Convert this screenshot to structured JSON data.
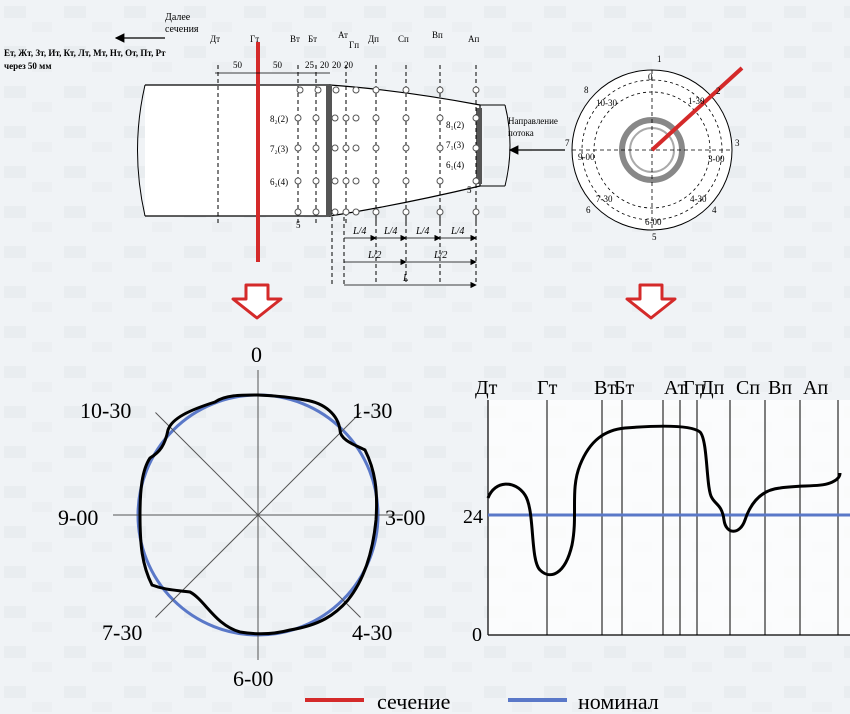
{
  "header": {
    "next_sections": "Далее\nсечения",
    "sections_list": "Ет, Жт, Зт, Ит, Кт, Лт, Мт, Нт, От, Пт, Рт",
    "sections_step": "через 50 мм",
    "flow_direction": "Направление\nпотока"
  },
  "top_section_labels": [
    "Дт",
    "Гт",
    "Вт",
    "Бт",
    "Ат",
    "Гп",
    "Дп",
    "Сп",
    "Вп",
    "Ап"
  ],
  "spacing_labels": [
    "50",
    "50",
    "25",
    "20",
    "20",
    "20"
  ],
  "measurement_points_left": [
    "8₂(2)",
    "7₂(3)",
    "6₂(4)",
    "5"
  ],
  "measurement_points_right": [
    "8₁(2)",
    "7₁(3)",
    "6₁(4)",
    "5"
  ],
  "length_labels": [
    "L/4",
    "L/4",
    "L/4",
    "L/4",
    "L/2",
    "L/2",
    "L"
  ],
  "small_circle": {
    "numbers": [
      "1",
      "2",
      "3",
      "4",
      "5",
      "6",
      "7",
      "8"
    ],
    "clock_labels": [
      "0",
      "1-30",
      "3-00",
      "4-30",
      "6-00",
      "7-30",
      "9-00",
      "10-30"
    ]
  },
  "polar_plot": {
    "labels": [
      "0",
      "1-30",
      "3-00",
      "4-30",
      "6-00",
      "7-30",
      "9-00",
      "10-30"
    ]
  },
  "profile_plot": {
    "column_labels": [
      "Дт",
      "Гт",
      "Вт",
      "Бт",
      "Ат",
      "Гп",
      "Дп",
      "Сп",
      "Вп",
      "Ап"
    ],
    "y_ticks": [
      "24",
      "0"
    ]
  },
  "legend": {
    "section": "сечение",
    "nominal": "номинал"
  },
  "colors": {
    "section": "#d42a2a",
    "nominal": "#5a78c8",
    "arrow": "#d42a2a"
  }
}
